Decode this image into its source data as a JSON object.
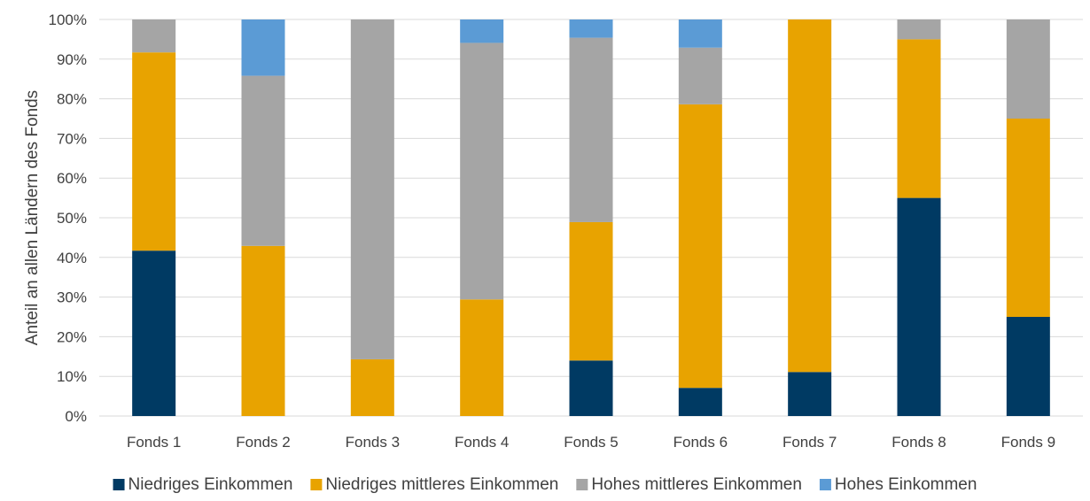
{
  "chart_data": {
    "type": "bar",
    "stacked": true,
    "categories": [
      "Fonds 1",
      "Fonds 2",
      "Fonds 3",
      "Fonds 4",
      "Fonds 5",
      "Fonds 6",
      "Fonds 7",
      "Fonds 8",
      "Fonds 9"
    ],
    "series": [
      {
        "name": "Niedriges Einkommen",
        "color": "#003a63",
        "values": [
          41.7,
          0,
          0,
          0,
          14.0,
          7.1,
          11.1,
          55.0,
          25.0
        ]
      },
      {
        "name": "Niedriges mittleres Einkommen",
        "color": "#e8a300",
        "values": [
          50.0,
          42.9,
          14.3,
          29.4,
          34.9,
          71.5,
          88.9,
          40.0,
          50.0
        ]
      },
      {
        "name": "Hohes mittleres Einkommen",
        "color": "#a5a5a5",
        "values": [
          8.3,
          42.9,
          85.7,
          64.7,
          46.5,
          14.3,
          0,
          5.0,
          25.0
        ]
      },
      {
        "name": "Hohes Einkommen",
        "color": "#5b9bd5",
        "values": [
          0,
          14.2,
          0,
          5.9,
          4.6,
          7.1,
          0,
          0,
          0
        ]
      }
    ],
    "ylabel": "Anteil an allen Ländern des Fonds",
    "xlabel": "",
    "title": "",
    "ylim": [
      0,
      100
    ],
    "y_ticks": [
      "0%",
      "10%",
      "20%",
      "30%",
      "40%",
      "50%",
      "60%",
      "70%",
      "80%",
      "90%",
      "100%"
    ],
    "grid": true,
    "legend_position": "bottom"
  }
}
